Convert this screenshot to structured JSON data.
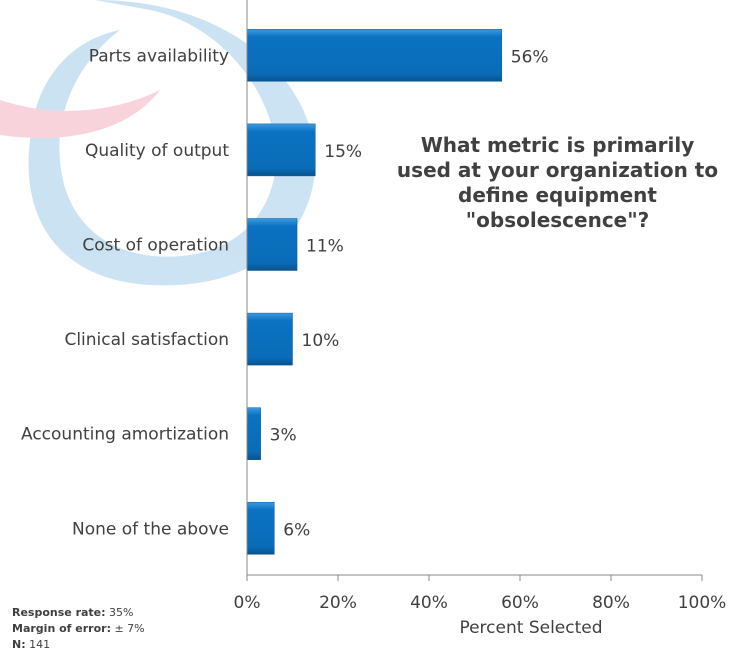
{
  "chart_data": {
    "type": "bar",
    "orientation": "horizontal",
    "title": "What metric is primarily used at your organization to define equipment \"obsolescence\"?",
    "categories": [
      "Parts availability",
      "Quality of output",
      "Cost of operation",
      "Clinical satisfaction",
      "Accounting amortization",
      "None of the above"
    ],
    "values": [
      56,
      15,
      11,
      10,
      3,
      6
    ],
    "value_labels": [
      "56%",
      "15%",
      "11%",
      "10%",
      "3%",
      "6%"
    ],
    "xlabel": "Percent Selected",
    "ylabel": "",
    "xlim": [
      0,
      100
    ],
    "xticks": [
      "0%",
      "20%",
      "40%",
      "60%",
      "80%",
      "100%"
    ],
    "grid": false,
    "bar_color": "#0a72c2"
  },
  "notes": {
    "response_rate_label": "Response rate:",
    "response_rate": "35%",
    "margin_label": "Margin of error:",
    "margin": "± 7%",
    "n_label": "N:",
    "n": "141"
  }
}
